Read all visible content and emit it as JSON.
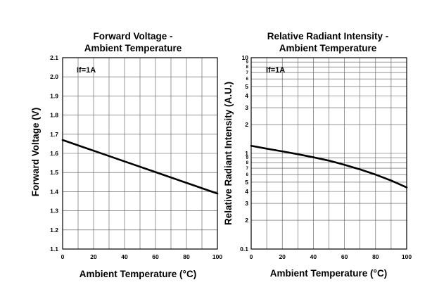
{
  "chart_data": [
    {
      "type": "line",
      "title_line1": "Forward Voltage -",
      "title_line2": "Ambient Temperature",
      "xlabel": "Ambient Temperature (°C)",
      "ylabel": "Forward Voltage (V)",
      "annotation": "If=1A",
      "xlim": [
        0,
        100
      ],
      "ylim": [
        1.1,
        2.1
      ],
      "yscale": "linear",
      "grid": true,
      "x_ticks": [
        "0",
        "20",
        "40",
        "60",
        "80",
        "100"
      ],
      "y_ticks": [
        "1.1",
        "1.2",
        "1.3",
        "1.4",
        "1.5",
        "1.6",
        "1.7",
        "1.8",
        "1.9",
        "2.0",
        "2.1"
      ],
      "series": [
        {
          "x": [
            0,
            20,
            40,
            60,
            80,
            100
          ],
          "y": [
            1.67,
            1.614,
            1.558,
            1.502,
            1.446,
            1.39
          ]
        }
      ]
    },
    {
      "type": "line",
      "title_line1": "Relative Radiant Intensity -",
      "title_line2": "Ambient Temperature",
      "xlabel": "Ambient Temperature (°C)",
      "ylabel": "Relative Radiant Intensity (A.U.)",
      "annotation": "If=1A",
      "xlim": [
        0,
        100
      ],
      "ylim": [
        0.1,
        10
      ],
      "yscale": "log",
      "grid": true,
      "x_ticks": [
        "0",
        "20",
        "40",
        "60",
        "80",
        "100"
      ],
      "y_ticks_major": [
        "0.1",
        "1",
        "10"
      ],
      "y_ticks_minor": [
        "2",
        "3",
        "4",
        "5",
        "6",
        "7",
        "8",
        "9"
      ],
      "series": [
        {
          "x": [
            0,
            10,
            20,
            30,
            40,
            50,
            60,
            70,
            80,
            90,
            100
          ],
          "y": [
            1.2,
            1.12,
            1.05,
            0.98,
            0.91,
            0.84,
            0.76,
            0.68,
            0.6,
            0.52,
            0.44
          ]
        }
      ]
    }
  ]
}
